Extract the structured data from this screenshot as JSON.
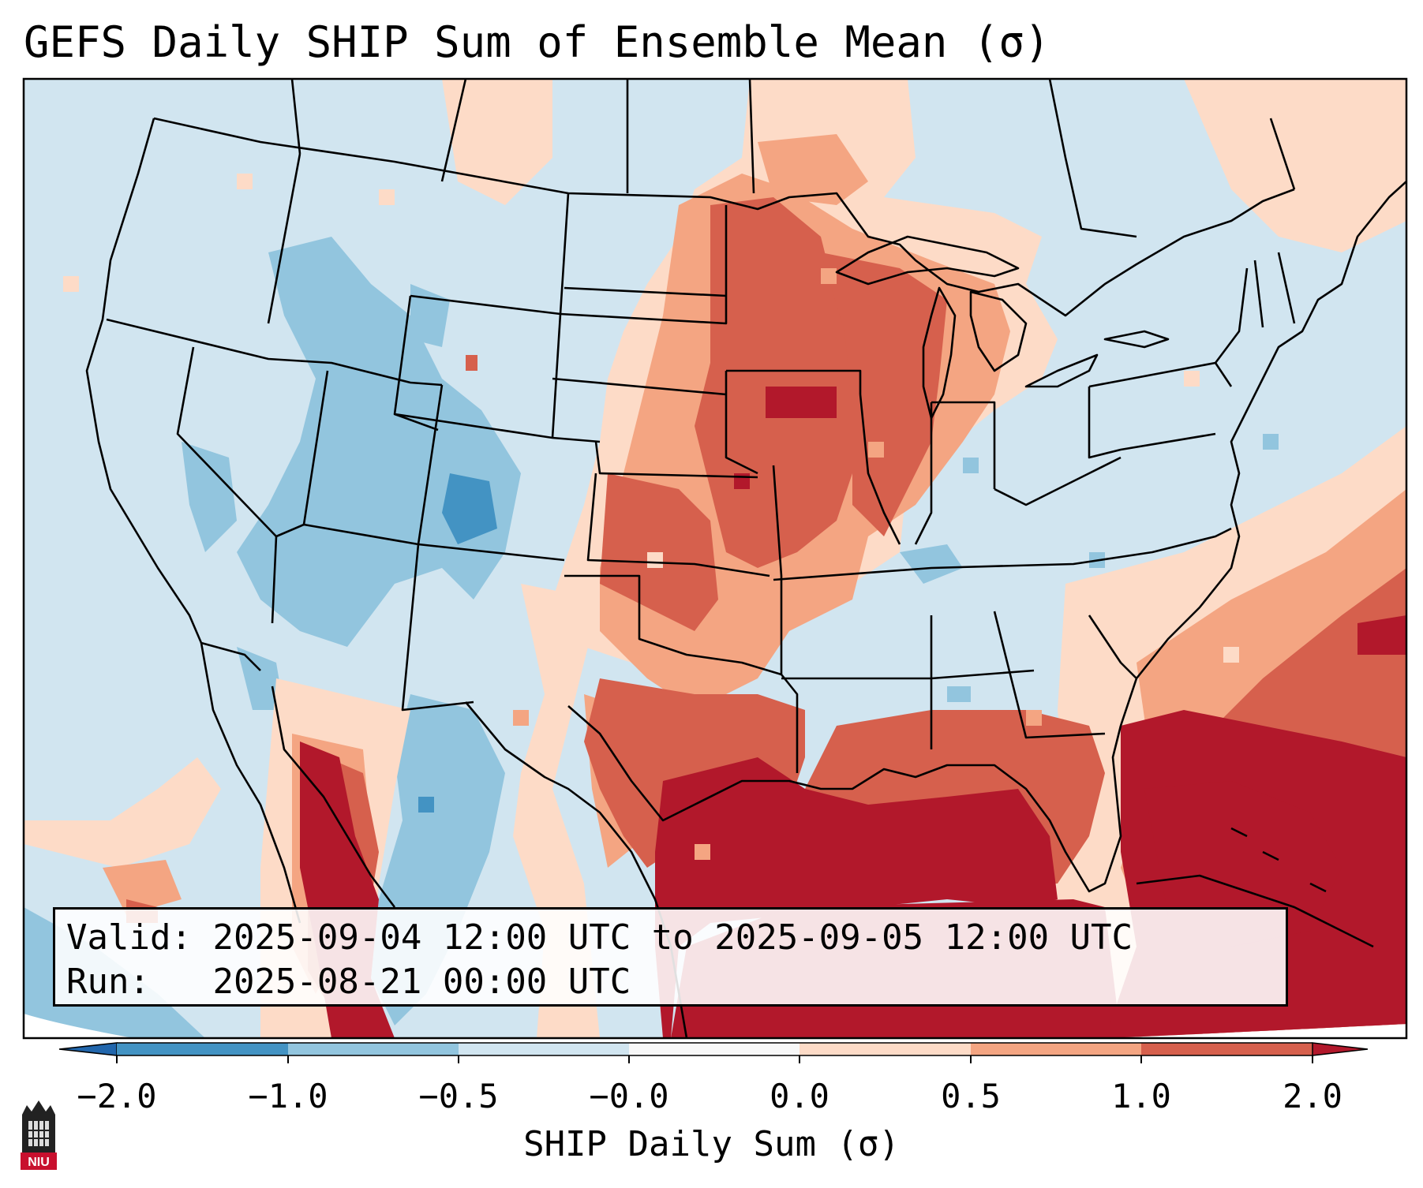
{
  "title": "GEFS Daily SHIP Sum of Ensemble Mean (σ)",
  "info": {
    "valid_label": "Valid:",
    "valid_value": "2025-09-04 12:00 UTC to 2025-09-05 12:00 UTC",
    "run_label": "Run:",
    "run_value": "2025-08-21 00:00 UTC"
  },
  "colorbar": {
    "label": "SHIP Daily Sum (σ)",
    "ticks": [
      "−2.0",
      "−1.0",
      "−0.5",
      "−0.0",
      "0.0",
      "0.5",
      "1.0",
      "2.0"
    ],
    "colors": [
      "#4393c3",
      "#92c5de",
      "#d1e5f0",
      "#f7f7f7",
      "#fddbc7",
      "#f4a582",
      "#d6604d",
      "#b2182b"
    ],
    "extend_low_color": "#2166ac",
    "extend_high_color": "#b2182b"
  },
  "logo": {
    "text": "NIU"
  }
}
